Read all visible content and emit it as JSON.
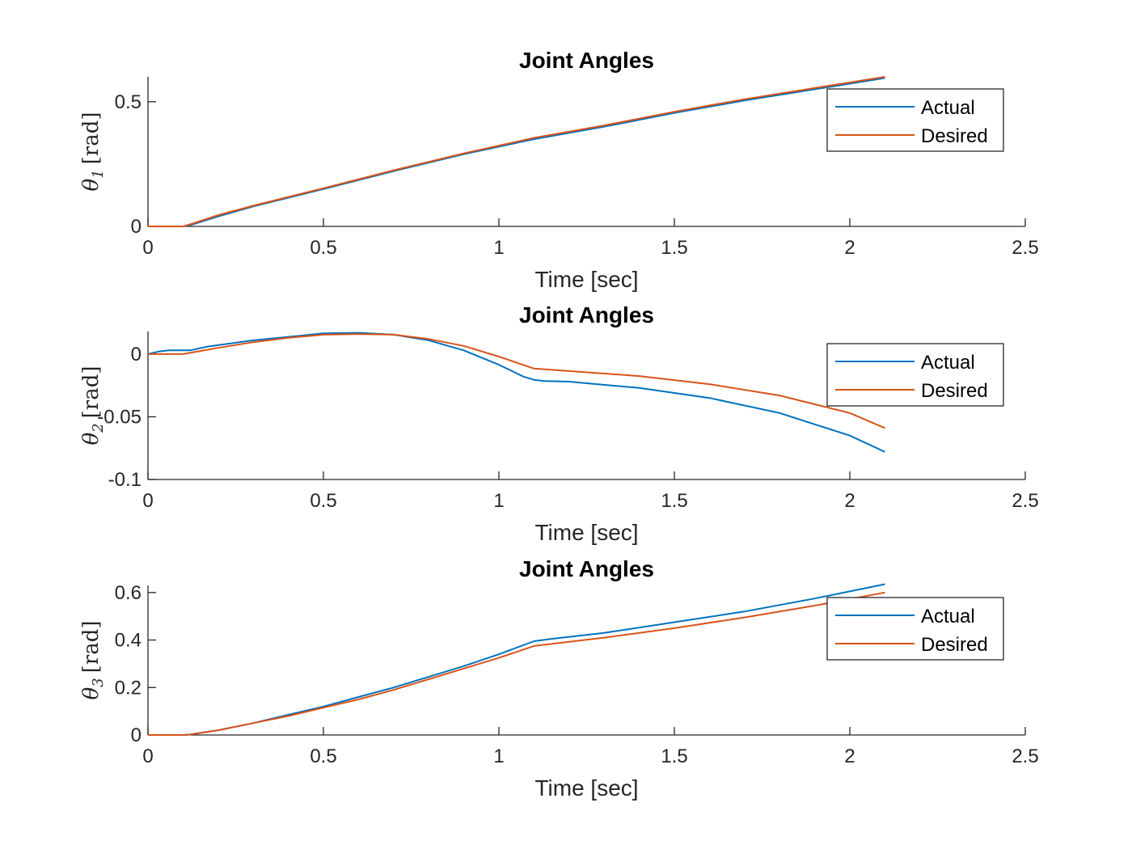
{
  "chart_data": [
    {
      "type": "line",
      "title": "Joint Angles",
      "xlabel": "Time [sec]",
      "ylabel_symbol": "θ",
      "ylabel_sub": "1",
      "ylabel_unit": "[rad]",
      "xlim": [
        0,
        2.5
      ],
      "ylim": [
        0,
        0.6
      ],
      "xticks": [
        0,
        0.5,
        1,
        1.5,
        2,
        2.5
      ],
      "xtick_labels": [
        "0",
        "0.5",
        "1",
        "1.5",
        "2",
        "2.5"
      ],
      "yticks": [
        0,
        0.5
      ],
      "ytick_labels": [
        "0",
        "0.5"
      ],
      "legend": "top-right",
      "grid": false,
      "series": [
        {
          "name": "Actual",
          "color": "#0072BD",
          "x": [
            0,
            0.1,
            0.12,
            0.2,
            0.3,
            0.5,
            0.7,
            0.9,
            1.1,
            1.3,
            1.5,
            1.7,
            1.9,
            2.1
          ],
          "y": [
            0,
            0,
            0.005,
            0.04,
            0.08,
            0.15,
            0.222,
            0.29,
            0.35,
            0.4,
            0.455,
            0.505,
            0.55,
            0.595
          ]
        },
        {
          "name": "Desired",
          "color": "#D95319",
          "x": [
            0,
            0.1,
            0.12,
            0.2,
            0.3,
            0.5,
            0.7,
            0.9,
            1.1,
            1.3,
            1.5,
            1.7,
            1.9,
            2.1
          ],
          "y": [
            0,
            0,
            0.008,
            0.045,
            0.083,
            0.153,
            0.225,
            0.293,
            0.355,
            0.405,
            0.46,
            0.51,
            0.555,
            0.6
          ]
        }
      ]
    },
    {
      "type": "line",
      "title": "Joint Angles",
      "xlabel": "Time [sec]",
      "ylabel_symbol": "θ",
      "ylabel_sub": "2",
      "ylabel_unit": "[rad]",
      "xlim": [
        0,
        2.5
      ],
      "ylim": [
        -0.1,
        0.018
      ],
      "xticks": [
        0,
        0.5,
        1,
        1.5,
        2,
        2.5
      ],
      "xtick_labels": [
        "0",
        "0.5",
        "1",
        "1.5",
        "2",
        "2.5"
      ],
      "yticks": [
        -0.1,
        -0.05,
        0
      ],
      "ytick_labels": [
        "-0.1",
        "-0.05",
        "0"
      ],
      "legend": "top-right",
      "grid": false,
      "series": [
        {
          "name": "Actual",
          "color": "#0072BD",
          "x": [
            0,
            0.03,
            0.06,
            0.1,
            0.12,
            0.17,
            0.3,
            0.5,
            0.6,
            0.7,
            0.8,
            0.9,
            1.0,
            1.07,
            1.1,
            1.13,
            1.2,
            1.4,
            1.6,
            1.8,
            2.0,
            2.1
          ],
          "y": [
            0,
            0.002,
            0.003,
            0.003,
            0.003,
            0.006,
            0.011,
            0.0165,
            0.017,
            0.0155,
            0.011,
            0.003,
            -0.0085,
            -0.018,
            -0.0205,
            -0.0215,
            -0.022,
            -0.027,
            -0.035,
            -0.047,
            -0.065,
            -0.078
          ]
        },
        {
          "name": "Desired",
          "color": "#D95319",
          "x": [
            0,
            0.1,
            0.2,
            0.3,
            0.4,
            0.5,
            0.6,
            0.7,
            0.8,
            0.9,
            1.0,
            1.1,
            1.2,
            1.4,
            1.6,
            1.8,
            2.0,
            2.1
          ],
          "y": [
            0,
            0,
            0.005,
            0.0095,
            0.013,
            0.0155,
            0.016,
            0.0155,
            0.012,
            0.0065,
            -0.002,
            -0.0115,
            -0.0135,
            -0.0175,
            -0.024,
            -0.033,
            -0.047,
            -0.059
          ]
        }
      ]
    },
    {
      "type": "line",
      "title": "Joint Angles",
      "xlabel": "Time [sec]",
      "ylabel_symbol": "θ",
      "ylabel_sub": "3",
      "ylabel_unit": "[rad]",
      "xlim": [
        0,
        2.5
      ],
      "ylim": [
        0,
        0.63
      ],
      "xticks": [
        0,
        0.5,
        1,
        1.5,
        2,
        2.5
      ],
      "xtick_labels": [
        "0",
        "0.5",
        "1",
        "1.5",
        "2",
        "2.5"
      ],
      "yticks": [
        0,
        0.2,
        0.4,
        0.6
      ],
      "ytick_labels": [
        "0",
        "0.2",
        "0.4",
        "0.6"
      ],
      "legend": "top-right",
      "grid": false,
      "series": [
        {
          "name": "Actual",
          "color": "#0072BD",
          "x": [
            0,
            0.1,
            0.12,
            0.2,
            0.3,
            0.4,
            0.5,
            0.6,
            0.7,
            0.8,
            0.9,
            1.0,
            1.1,
            1.15,
            1.3,
            1.5,
            1.7,
            1.9,
            2.1
          ],
          "y": [
            0,
            0,
            0.002,
            0.02,
            0.05,
            0.085,
            0.12,
            0.16,
            0.2,
            0.245,
            0.29,
            0.34,
            0.395,
            0.405,
            0.43,
            0.475,
            0.52,
            0.575,
            0.635
          ]
        },
        {
          "name": "Desired",
          "color": "#D95319",
          "x": [
            0,
            0.1,
            0.12,
            0.2,
            0.3,
            0.4,
            0.5,
            0.6,
            0.7,
            0.8,
            0.9,
            1.0,
            1.1,
            1.3,
            1.5,
            1.7,
            1.9,
            2.1
          ],
          "y": [
            0,
            0,
            0.002,
            0.02,
            0.05,
            0.08,
            0.115,
            0.15,
            0.19,
            0.235,
            0.28,
            0.325,
            0.375,
            0.41,
            0.45,
            0.495,
            0.545,
            0.6
          ]
        }
      ]
    }
  ]
}
